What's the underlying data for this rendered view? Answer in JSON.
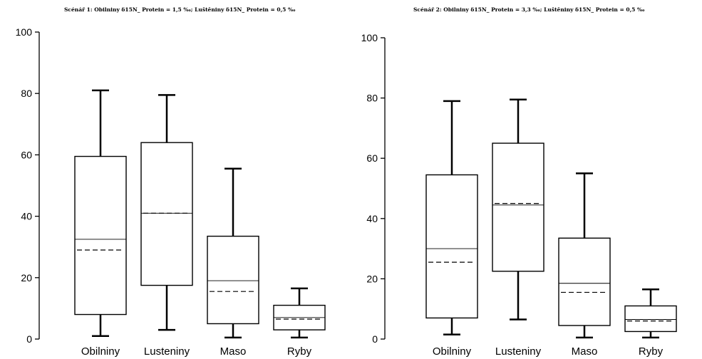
{
  "chart_data": [
    {
      "type": "box",
      "title": "Scénář 1: Obilniny δ15N_ Protein = 1,5 ‰;  Luštěniny δ15N_ Protein = 0,5 ‰",
      "categories": [
        "Obilniny",
        "Lusteniny",
        "Maso",
        "Ryby"
      ],
      "ylim": [
        0,
        100
      ],
      "yticks": [
        0,
        20,
        40,
        60,
        80,
        100
      ],
      "grid": false,
      "boxes": [
        {
          "whisker_low": 1,
          "q1": 8,
          "median": 32.5,
          "mean": 29,
          "q3": 59.5,
          "whisker_high": 81
        },
        {
          "whisker_low": 3,
          "q1": 17.5,
          "median": 41,
          "mean": 41,
          "q3": 64,
          "whisker_high": 79.5
        },
        {
          "whisker_low": 0.5,
          "q1": 5,
          "median": 19,
          "mean": 15.5,
          "q3": 33.5,
          "whisker_high": 55.5
        },
        {
          "whisker_low": 0.5,
          "q1": 3,
          "median": 7,
          "mean": 6.5,
          "q3": 11,
          "whisker_high": 16.5
        }
      ]
    },
    {
      "type": "box",
      "title": "Scénář 2:  Obilniny δ15N_ Protein = 3,3 ‰;  Luštěniny δ15N_ Protein = 0,5 ‰",
      "categories": [
        "Obilniny",
        "Lusteniny",
        "Maso",
        "Ryby"
      ],
      "ylim": [
        0,
        100
      ],
      "yticks": [
        0,
        20,
        40,
        60,
        80,
        100
      ],
      "grid": false,
      "boxes": [
        {
          "whisker_low": 1.5,
          "q1": 7,
          "median": 30,
          "mean": 25.5,
          "q3": 54.5,
          "whisker_high": 79
        },
        {
          "whisker_low": 6.5,
          "q1": 22.5,
          "median": 44.5,
          "mean": 45,
          "q3": 65,
          "whisker_high": 79.5
        },
        {
          "whisker_low": 0.5,
          "q1": 4.5,
          "median": 18.5,
          "mean": 15.5,
          "q3": 33.5,
          "whisker_high": 55
        },
        {
          "whisker_low": 0.5,
          "q1": 2.5,
          "median": 6.5,
          "mean": 6,
          "q3": 11,
          "whisker_high": 16.5
        }
      ]
    }
  ]
}
